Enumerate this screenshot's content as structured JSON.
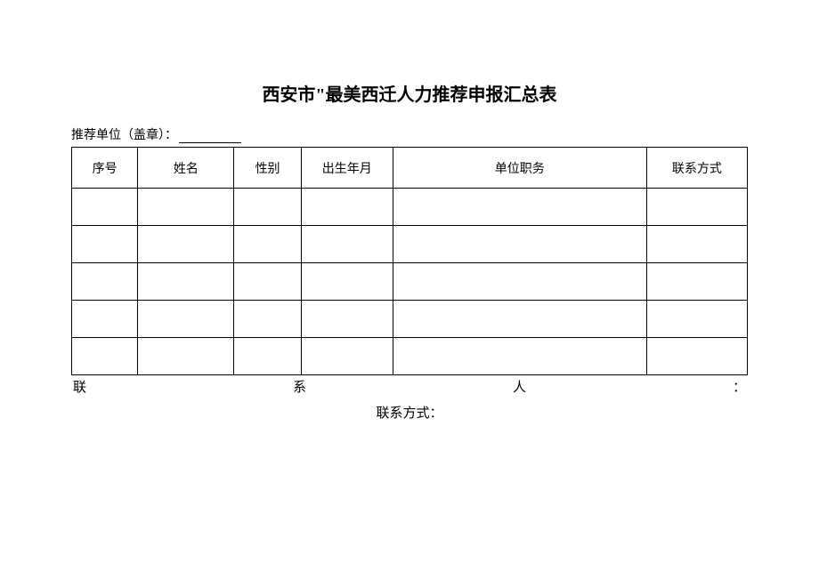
{
  "title": "西安市\"最美西迁人力推荐申报汇总表",
  "subtitle_label": "推荐单位（盖章）：",
  "columns": [
    "序号",
    "姓名",
    "性别",
    "出生年月",
    "单位职务",
    "联系方式"
  ],
  "rows": [
    [
      "",
      "",
      "",
      "",
      "",
      ""
    ],
    [
      "",
      "",
      "",
      "",
      "",
      ""
    ],
    [
      "",
      "",
      "",
      "",
      "",
      ""
    ],
    [
      "",
      "",
      "",
      "",
      "",
      ""
    ],
    [
      "",
      "",
      "",
      "",
      "",
      ""
    ]
  ],
  "footer1_parts": [
    "联",
    "系",
    "人",
    "："
  ],
  "footer2": "联系方式："
}
